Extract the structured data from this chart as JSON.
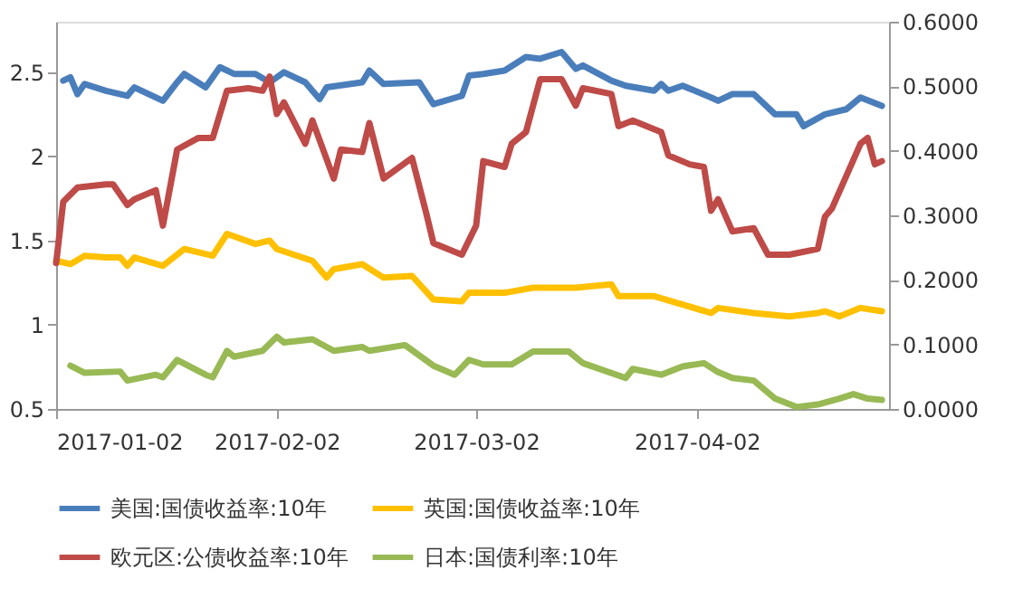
{
  "chart_data": {
    "type": "line",
    "xlim": [
      "2017-01-02",
      "2017-04-29"
    ],
    "xticks": [
      "2017-01-02",
      "2017-02-02",
      "2017-03-02",
      "2017-04-02"
    ],
    "ylim": [
      0.5,
      2.8
    ],
    "yticks": [
      0.5,
      1,
      1.5,
      2,
      2.5
    ],
    "y2lim": [
      0,
      0.6
    ],
    "y2ticks": [
      {
        "value": 0,
        "label": "0.0000"
      },
      {
        "value": 0.1,
        "label": "0.1000"
      },
      {
        "value": 0.2,
        "label": "0.2000"
      },
      {
        "value": 0.3,
        "label": "0.3000"
      },
      {
        "value": 0.4,
        "label": "0.4000"
      },
      {
        "value": 0.5,
        "label": "0.5000"
      },
      {
        "value": 0.6,
        "label": "0.6000"
      }
    ],
    "legend": "bottom",
    "line_style": "solid",
    "series": [
      {
        "name": "美国:国债收益率:10年",
        "color": "#4a7ebb",
        "axis": "y",
        "x": [
          "2017-01-03",
          "2017-01-04",
          "2017-01-05",
          "2017-01-06",
          "2017-01-09",
          "2017-01-12",
          "2017-01-13",
          "2017-01-17",
          "2017-01-19",
          "2017-01-20",
          "2017-01-23",
          "2017-01-25",
          "2017-01-27",
          "2017-01-30",
          "2017-02-01",
          "2017-02-03",
          "2017-02-06",
          "2017-02-08",
          "2017-02-09",
          "2017-02-14",
          "2017-02-15",
          "2017-02-17",
          "2017-02-22",
          "2017-02-24",
          "2017-02-28",
          "2017-03-01",
          "2017-03-03",
          "2017-03-06",
          "2017-03-09",
          "2017-03-11",
          "2017-03-14",
          "2017-03-16",
          "2017-03-17",
          "2017-03-21",
          "2017-03-23",
          "2017-03-27",
          "2017-03-28",
          "2017-03-29",
          "2017-03-31",
          "2017-04-04",
          "2017-04-05",
          "2017-04-07",
          "2017-04-10",
          "2017-04-13",
          "2017-04-16",
          "2017-04-17",
          "2017-04-20",
          "2017-04-23",
          "2017-04-25",
          "2017-04-28"
        ],
        "values": [
          2.45,
          2.47,
          2.37,
          2.43,
          2.39,
          2.36,
          2.41,
          2.33,
          2.44,
          2.49,
          2.41,
          2.53,
          2.49,
          2.49,
          2.44,
          2.5,
          2.44,
          2.34,
          2.41,
          2.44,
          2.51,
          2.43,
          2.44,
          2.31,
          2.36,
          2.48,
          2.49,
          2.51,
          2.59,
          2.58,
          2.62,
          2.52,
          2.54,
          2.45,
          2.42,
          2.39,
          2.43,
          2.39,
          2.42,
          2.35,
          2.33,
          2.37,
          2.37,
          2.25,
          2.25,
          2.18,
          2.25,
          2.28,
          2.35,
          2.3
        ]
      },
      {
        "name": "英国:国债收益率:10年",
        "color": "#ffc000",
        "axis": "y",
        "x": [
          "2017-01-02",
          "2017-01-04",
          "2017-01-06",
          "2017-01-09",
          "2017-01-11",
          "2017-01-12",
          "2017-01-13",
          "2017-01-17",
          "2017-01-20",
          "2017-01-24",
          "2017-01-26",
          "2017-01-30",
          "2017-02-01",
          "2017-02-02",
          "2017-02-07",
          "2017-02-09",
          "2017-02-10",
          "2017-02-14",
          "2017-02-17",
          "2017-02-21",
          "2017-02-24",
          "2017-02-28",
          "2017-03-01",
          "2017-03-06",
          "2017-03-10",
          "2017-03-16",
          "2017-03-21",
          "2017-03-22",
          "2017-03-27",
          "2017-03-31",
          "2017-04-04",
          "2017-04-05",
          "2017-04-10",
          "2017-04-15",
          "2017-04-19",
          "2017-04-20",
          "2017-04-22",
          "2017-04-25",
          "2017-04-28"
        ],
        "values": [
          1.38,
          1.36,
          1.41,
          1.4,
          1.4,
          1.35,
          1.4,
          1.35,
          1.45,
          1.41,
          1.54,
          1.48,
          1.5,
          1.45,
          1.38,
          1.28,
          1.33,
          1.36,
          1.28,
          1.29,
          1.15,
          1.14,
          1.19,
          1.19,
          1.22,
          1.22,
          1.24,
          1.17,
          1.17,
          1.12,
          1.07,
          1.1,
          1.07,
          1.05,
          1.07,
          1.08,
          1.05,
          1.1,
          1.08
        ]
      },
      {
        "name": "欧元区:公债收益率:10年",
        "color": "#be4b48",
        "axis": "y2",
        "x": [
          "2017-01-02",
          "2017-01-03",
          "2017-01-05",
          "2017-01-09",
          "2017-01-10",
          "2017-01-12",
          "2017-01-13",
          "2017-01-16",
          "2017-01-17",
          "2017-01-19",
          "2017-01-22",
          "2017-01-24",
          "2017-01-26",
          "2017-01-29",
          "2017-01-31",
          "2017-02-01",
          "2017-02-02",
          "2017-02-03",
          "2017-02-06",
          "2017-02-07",
          "2017-02-10",
          "2017-02-11",
          "2017-02-14",
          "2017-02-15",
          "2017-02-17",
          "2017-02-21",
          "2017-02-23",
          "2017-02-24",
          "2017-02-28",
          "2017-03-02",
          "2017-03-03",
          "2017-03-06",
          "2017-03-07",
          "2017-03-09",
          "2017-03-11",
          "2017-03-14",
          "2017-03-16",
          "2017-03-17",
          "2017-03-21",
          "2017-03-22",
          "2017-03-24",
          "2017-03-28",
          "2017-03-29",
          "2017-04-01",
          "2017-04-03",
          "2017-04-04",
          "2017-04-05",
          "2017-04-07",
          "2017-04-10",
          "2017-04-12",
          "2017-04-15",
          "2017-04-19",
          "2017-04-20",
          "2017-04-21",
          "2017-04-25",
          "2017-04-26",
          "2017-04-27",
          "2017-04-28"
        ],
        "values": [
          0.226,
          0.321,
          0.343,
          0.348,
          0.348,
          0.316,
          0.325,
          0.339,
          0.284,
          0.402,
          0.42,
          0.42,
          0.493,
          0.497,
          0.493,
          0.515,
          0.457,
          0.475,
          0.411,
          0.447,
          0.357,
          0.402,
          0.398,
          0.443,
          0.357,
          0.389,
          0.303,
          0.257,
          0.239,
          0.284,
          0.384,
          0.375,
          0.411,
          0.429,
          0.511,
          0.511,
          0.47,
          0.497,
          0.488,
          0.438,
          0.447,
          0.429,
          0.393,
          0.379,
          0.375,
          0.307,
          0.325,
          0.275,
          0.28,
          0.239,
          0.239,
          0.248,
          0.298,
          0.311,
          0.411,
          0.42,
          0.379,
          0.384
        ]
      },
      {
        "name": "日本:国债利率:10年",
        "color": "#98b954",
        "axis": "y2",
        "x": [
          "2017-01-04",
          "2017-01-06",
          "2017-01-11",
          "2017-01-12",
          "2017-01-16",
          "2017-01-17",
          "2017-01-19",
          "2017-01-23",
          "2017-01-24",
          "2017-01-26",
          "2017-01-27",
          "2017-01-31",
          "2017-02-02",
          "2017-02-03",
          "2017-02-07",
          "2017-02-10",
          "2017-02-14",
          "2017-02-15",
          "2017-02-20",
          "2017-02-24",
          "2017-02-27",
          "2017-03-01",
          "2017-03-03",
          "2017-03-07",
          "2017-03-10",
          "2017-03-15",
          "2017-03-17",
          "2017-03-23",
          "2017-03-24",
          "2017-03-28",
          "2017-03-31",
          "2017-04-03",
          "2017-04-05",
          "2017-04-07",
          "2017-04-10",
          "2017-04-13",
          "2017-04-16",
          "2017-04-19",
          "2017-04-22",
          "2017-04-24",
          "2017-04-26",
          "2017-04-28"
        ],
        "values": [
          0.067,
          0.056,
          0.058,
          0.044,
          0.053,
          0.049,
          0.076,
          0.053,
          0.049,
          0.09,
          0.081,
          0.09,
          0.112,
          0.103,
          0.108,
          0.09,
          0.096,
          0.09,
          0.099,
          0.067,
          0.053,
          0.076,
          0.069,
          0.069,
          0.089,
          0.089,
          0.071,
          0.048,
          0.062,
          0.053,
          0.066,
          0.071,
          0.057,
          0.048,
          0.044,
          0.016,
          0.003,
          0.007,
          0.016,
          0.023,
          0.016,
          0.014
        ]
      }
    ]
  }
}
